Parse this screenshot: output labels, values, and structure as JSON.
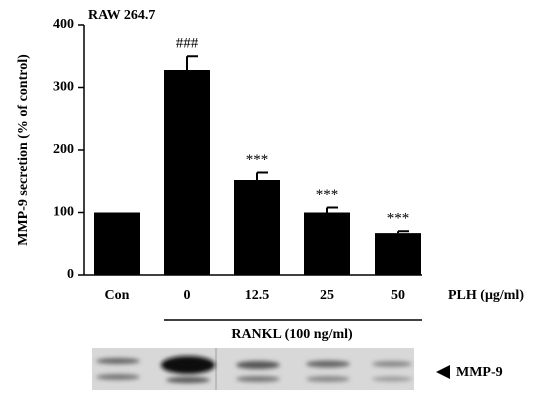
{
  "chart_data": {
    "type": "bar",
    "title": "RAW 264.7",
    "y_label": "MMP-9 secretion (% of control)",
    "x_label": "PLH (μg/ml)",
    "group_label": "RANKL (100 ng/ml)",
    "blot_label": "MMP-9",
    "categories": [
      "Con",
      "0",
      "12.5",
      "25",
      "50"
    ],
    "values": [
      100,
      328,
      152,
      100,
      67
    ],
    "errors": [
      null,
      22,
      12,
      8,
      3
    ],
    "annotations": [
      null,
      "###",
      "***",
      "***",
      "***"
    ],
    "color": "#000000",
    "ylim": [
      0,
      400
    ],
    "yticks": [
      0,
      100,
      200,
      300,
      400
    ]
  }
}
